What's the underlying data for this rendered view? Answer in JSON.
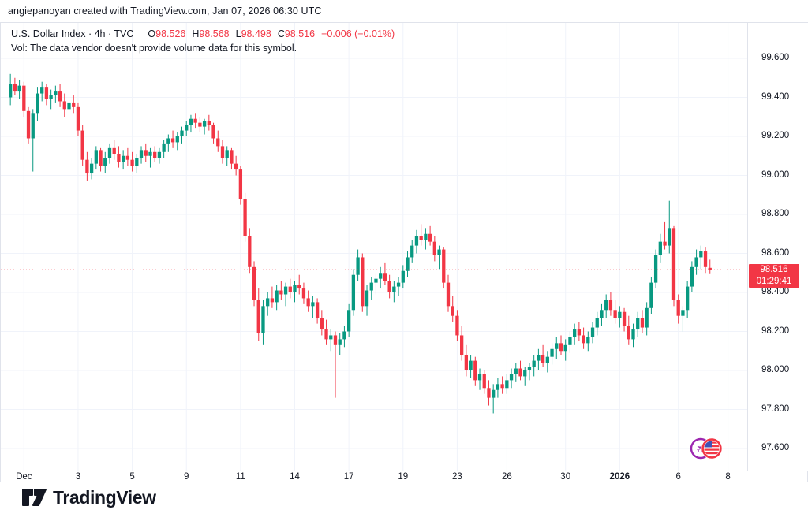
{
  "attribution": "angiepanoyan created with TradingView.com, Jan 07, 2026 06:30 UTC",
  "legend": {
    "symbol_text": "U.S. Dollar Index · 4h · TVC",
    "o_label": "O",
    "o": "98.526",
    "h_label": "H",
    "h": "98.568",
    "l_label": "L",
    "l": "98.498",
    "c_label": "C",
    "c": "98.516",
    "change": "−0.006 (−0.01%)",
    "vol_note": "Vol: The data vendor doesn't provide volume data for this symbol."
  },
  "price_label": {
    "value": "98.516",
    "countdown": "01:29:41"
  },
  "logo_text": "TradingView",
  "colors": {
    "up": "#089981",
    "down": "#f23645",
    "grid": "#f0f3fa",
    "axis_text": "#131722",
    "price_line": "#f23645",
    "badge_bg": "#f23645",
    "event_purple": "#9c27b0",
    "event_red": "#f23645",
    "flag_blue": "#3f51b5"
  },
  "chart_data": {
    "type": "candlestick",
    "title": "U.S. Dollar Index",
    "interval": "4h",
    "exchange": "TVC",
    "current_price": 98.516,
    "current_ohlc": {
      "open": 98.526,
      "high": 98.568,
      "low": 98.498,
      "close": 98.516,
      "change": -0.006,
      "change_pct": -0.01
    },
    "y_axis": {
      "min": 97.6,
      "max": 99.6,
      "tick_step": 0.2,
      "labels": [
        "99.600",
        "99.400",
        "99.200",
        "99.000",
        "98.800",
        "98.600",
        "98.400",
        "98.200",
        "98.000",
        "97.800",
        "97.600"
      ]
    },
    "x_ticks": [
      {
        "label": "Dec",
        "i": 3
      },
      {
        "label": "3",
        "i": 15
      },
      {
        "label": "5",
        "i": 27
      },
      {
        "label": "9",
        "i": 39
      },
      {
        "label": "11",
        "i": 51
      },
      {
        "label": "14",
        "i": 63
      },
      {
        "label": "17",
        "i": 75
      },
      {
        "label": "19",
        "i": 87
      },
      {
        "label": "23",
        "i": 99
      },
      {
        "label": "26",
        "i": 110
      },
      {
        "label": "30",
        "i": 123
      },
      {
        "label": "2026",
        "i": 135,
        "bold": true
      },
      {
        "label": "6",
        "i": 148
      },
      {
        "label": "8",
        "i": 159
      }
    ],
    "candles": [
      [
        99.4,
        99.52,
        99.36,
        99.47
      ],
      [
        99.47,
        99.5,
        99.41,
        99.43
      ],
      [
        99.43,
        99.49,
        99.39,
        99.46
      ],
      [
        99.46,
        99.48,
        99.3,
        99.33
      ],
      [
        99.33,
        99.35,
        99.16,
        99.19
      ],
      [
        99.19,
        99.34,
        99.02,
        99.32
      ],
      [
        99.32,
        99.45,
        99.28,
        99.42
      ],
      [
        99.42,
        99.48,
        99.38,
        99.45
      ],
      [
        99.45,
        99.47,
        99.36,
        99.39
      ],
      [
        99.39,
        99.44,
        99.34,
        99.41
      ],
      [
        99.41,
        99.46,
        99.37,
        99.43
      ],
      [
        99.43,
        99.47,
        99.35,
        99.38
      ],
      [
        99.38,
        99.42,
        99.3,
        99.34
      ],
      [
        99.34,
        99.4,
        99.28,
        99.37
      ],
      [
        99.37,
        99.41,
        99.32,
        99.35
      ],
      [
        99.35,
        99.37,
        99.2,
        99.23
      ],
      [
        99.23,
        99.26,
        99.05,
        99.08
      ],
      [
        99.08,
        99.12,
        98.97,
        99.01
      ],
      [
        99.01,
        99.09,
        98.98,
        99.06
      ],
      [
        99.06,
        99.15,
        99.03,
        99.13
      ],
      [
        99.13,
        99.14,
        99.02,
        99.05
      ],
      [
        99.05,
        99.12,
        99.01,
        99.09
      ],
      [
        99.09,
        99.16,
        99.06,
        99.14
      ],
      [
        99.14,
        99.18,
        99.08,
        99.11
      ],
      [
        99.11,
        99.15,
        99.04,
        99.07
      ],
      [
        99.07,
        99.13,
        99.03,
        99.1
      ],
      [
        99.1,
        99.14,
        99.05,
        99.08
      ],
      [
        99.08,
        99.12,
        99.02,
        99.05
      ],
      [
        99.05,
        99.11,
        99.01,
        99.09
      ],
      [
        99.09,
        99.15,
        99.06,
        99.13
      ],
      [
        99.13,
        99.16,
        99.07,
        99.1
      ],
      [
        99.1,
        99.14,
        99.04,
        99.12
      ],
      [
        99.12,
        99.15,
        99.07,
        99.09
      ],
      [
        99.09,
        99.14,
        99.06,
        99.12
      ],
      [
        99.12,
        99.18,
        99.09,
        99.16
      ],
      [
        99.16,
        99.21,
        99.12,
        99.19
      ],
      [
        99.19,
        99.23,
        99.14,
        99.17
      ],
      [
        99.17,
        99.22,
        99.13,
        99.2
      ],
      [
        99.2,
        99.25,
        99.16,
        99.23
      ],
      [
        99.23,
        99.28,
        99.2,
        99.26
      ],
      [
        99.26,
        99.31,
        99.22,
        99.29
      ],
      [
        99.29,
        99.32,
        99.24,
        99.27
      ],
      [
        99.27,
        99.3,
        99.22,
        99.25
      ],
      [
        99.25,
        99.29,
        99.21,
        99.28
      ],
      [
        99.28,
        99.31,
        99.23,
        99.26
      ],
      [
        99.26,
        99.27,
        99.16,
        99.19
      ],
      [
        99.19,
        99.23,
        99.12,
        99.15
      ],
      [
        99.15,
        99.18,
        99.06,
        99.09
      ],
      [
        99.09,
        99.15,
        99.05,
        99.13
      ],
      [
        99.13,
        99.14,
        99.03,
        99.06
      ],
      [
        99.06,
        99.1,
        99.0,
        99.03
      ],
      [
        99.03,
        99.05,
        98.85,
        98.88
      ],
      [
        98.88,
        98.91,
        98.66,
        98.69
      ],
      [
        98.69,
        98.73,
        98.5,
        98.53
      ],
      [
        98.53,
        98.56,
        98.33,
        98.36
      ],
      [
        98.36,
        98.42,
        98.15,
        98.19
      ],
      [
        98.19,
        98.36,
        98.13,
        98.33
      ],
      [
        98.33,
        98.4,
        98.28,
        98.37
      ],
      [
        98.37,
        98.43,
        98.32,
        98.35
      ],
      [
        98.35,
        98.44,
        98.31,
        98.41
      ],
      [
        98.41,
        98.46,
        98.36,
        98.39
      ],
      [
        98.39,
        98.45,
        98.33,
        98.43
      ],
      [
        98.43,
        98.47,
        98.37,
        98.4
      ],
      [
        98.4,
        98.46,
        98.35,
        98.44
      ],
      [
        98.44,
        98.49,
        98.39,
        98.42
      ],
      [
        98.42,
        98.45,
        98.34,
        98.37
      ],
      [
        98.37,
        98.41,
        98.3,
        98.33
      ],
      [
        98.33,
        98.38,
        98.27,
        98.35
      ],
      [
        98.35,
        98.37,
        98.24,
        98.27
      ],
      [
        98.27,
        98.31,
        98.18,
        98.21
      ],
      [
        98.21,
        98.26,
        98.13,
        98.16
      ],
      [
        98.16,
        98.21,
        98.1,
        98.18
      ],
      [
        98.18,
        98.2,
        97.86,
        98.13
      ],
      [
        98.13,
        98.19,
        98.08,
        98.16
      ],
      [
        98.16,
        98.23,
        98.12,
        98.2
      ],
      [
        98.2,
        98.34,
        98.17,
        98.31
      ],
      [
        98.31,
        98.52,
        98.28,
        98.49
      ],
      [
        98.49,
        98.62,
        98.46,
        98.58
      ],
      [
        98.58,
        98.6,
        98.3,
        98.33
      ],
      [
        98.33,
        98.44,
        98.28,
        98.41
      ],
      [
        98.41,
        98.48,
        98.36,
        98.45
      ],
      [
        98.45,
        98.5,
        98.39,
        98.47
      ],
      [
        98.47,
        98.53,
        98.42,
        98.5
      ],
      [
        98.5,
        98.55,
        98.44,
        98.46
      ],
      [
        98.46,
        98.49,
        98.37,
        98.4
      ],
      [
        98.4,
        98.46,
        98.35,
        98.43
      ],
      [
        98.43,
        98.48,
        98.38,
        98.45
      ],
      [
        98.45,
        98.54,
        98.42,
        98.51
      ],
      [
        98.51,
        98.61,
        98.48,
        98.58
      ],
      [
        98.58,
        98.67,
        98.55,
        98.64
      ],
      [
        98.64,
        98.72,
        98.6,
        98.69
      ],
      [
        98.69,
        98.75,
        98.64,
        98.67
      ],
      [
        98.67,
        98.73,
        98.62,
        98.7
      ],
      [
        98.7,
        98.74,
        98.64,
        98.66
      ],
      [
        98.66,
        98.69,
        98.56,
        98.59
      ],
      [
        98.59,
        98.64,
        98.52,
        98.62
      ],
      [
        98.62,
        98.63,
        98.42,
        98.45
      ],
      [
        98.45,
        98.49,
        98.3,
        98.33
      ],
      [
        98.33,
        98.38,
        98.25,
        98.28
      ],
      [
        98.28,
        98.31,
        98.15,
        98.18
      ],
      [
        98.18,
        98.23,
        98.05,
        98.08
      ],
      [
        98.08,
        98.13,
        97.97,
        98.0
      ],
      [
        98.0,
        98.08,
        97.96,
        98.05
      ],
      [
        98.05,
        98.07,
        97.92,
        97.95
      ],
      [
        97.95,
        98.01,
        97.9,
        97.98
      ],
      [
        97.98,
        98.0,
        97.88,
        97.91
      ],
      [
        97.91,
        97.95,
        97.82,
        97.86
      ],
      [
        97.86,
        97.93,
        97.78,
        97.9
      ],
      [
        97.9,
        97.96,
        97.86,
        97.93
      ],
      [
        97.93,
        97.97,
        97.88,
        97.91
      ],
      [
        97.91,
        97.98,
        97.88,
        97.95
      ],
      [
        97.95,
        98.01,
        97.91,
        97.98
      ],
      [
        97.98,
        98.04,
        97.94,
        98.01
      ],
      [
        98.01,
        98.05,
        97.95,
        97.97
      ],
      [
        97.97,
        98.02,
        97.92,
        98.0
      ],
      [
        98.0,
        98.04,
        97.95,
        98.02
      ],
      [
        98.02,
        98.08,
        97.97,
        98.05
      ],
      [
        98.05,
        98.11,
        98.0,
        98.08
      ],
      [
        98.08,
        98.13,
        98.02,
        98.04
      ],
      [
        98.04,
        98.1,
        97.99,
        98.07
      ],
      [
        98.07,
        98.14,
        98.03,
        98.11
      ],
      [
        98.11,
        98.17,
        98.06,
        98.14
      ],
      [
        98.14,
        98.18,
        98.08,
        98.1
      ],
      [
        98.1,
        98.16,
        98.05,
        98.13
      ],
      [
        98.13,
        98.2,
        98.09,
        98.17
      ],
      [
        98.17,
        98.24,
        98.13,
        98.21
      ],
      [
        98.21,
        98.25,
        98.15,
        98.18
      ],
      [
        98.18,
        98.22,
        98.11,
        98.14
      ],
      [
        98.14,
        98.2,
        98.1,
        98.17
      ],
      [
        98.17,
        98.25,
        98.14,
        98.22
      ],
      [
        98.22,
        98.3,
        98.18,
        98.27
      ],
      [
        98.27,
        98.34,
        98.23,
        98.31
      ],
      [
        98.31,
        98.39,
        98.27,
        98.36
      ],
      [
        98.36,
        98.4,
        98.28,
        98.31
      ],
      [
        98.31,
        98.36,
        98.24,
        98.27
      ],
      [
        98.27,
        98.33,
        98.22,
        98.3
      ],
      [
        98.3,
        98.32,
        98.2,
        98.23
      ],
      [
        98.23,
        98.28,
        98.13,
        98.16
      ],
      [
        98.16,
        98.24,
        98.12,
        98.21
      ],
      [
        98.21,
        98.3,
        98.17,
        98.27
      ],
      [
        98.27,
        98.31,
        98.19,
        98.22
      ],
      [
        98.22,
        98.35,
        98.18,
        98.32
      ],
      [
        98.32,
        98.48,
        98.29,
        98.45
      ],
      [
        98.45,
        98.62,
        98.42,
        98.59
      ],
      [
        98.59,
        98.7,
        98.55,
        98.66
      ],
      [
        98.66,
        98.76,
        98.62,
        98.64
      ],
      [
        98.64,
        98.87,
        98.6,
        98.73
      ],
      [
        98.73,
        98.74,
        98.33,
        98.36
      ],
      [
        98.36,
        98.39,
        98.24,
        98.28
      ],
      [
        98.28,
        98.33,
        98.2,
        98.31
      ],
      [
        98.31,
        98.46,
        98.27,
        98.43
      ],
      [
        98.43,
        98.56,
        98.4,
        98.53
      ],
      [
        98.53,
        98.62,
        98.49,
        98.58
      ],
      [
        98.58,
        98.64,
        98.52,
        98.61
      ],
      [
        98.61,
        98.63,
        98.5,
        98.53
      ],
      [
        98.526,
        98.568,
        98.498,
        98.516
      ]
    ]
  }
}
